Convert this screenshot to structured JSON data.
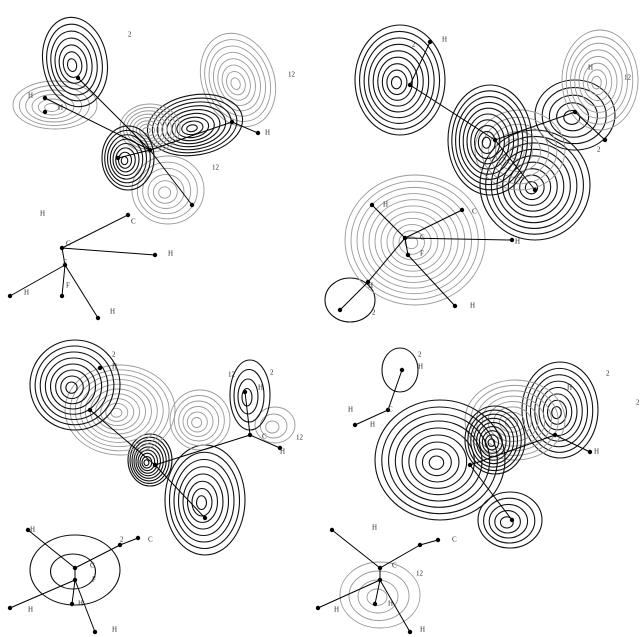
{
  "panels": [
    {
      "labels": [
        "2",
        "H",
        "H",
        "12",
        "H",
        "12",
        "H",
        "C",
        "C",
        "H",
        "F",
        "H",
        "F",
        "H"
      ]
    },
    {
      "labels": [
        "2",
        "H",
        "12",
        "H",
        "2",
        "H",
        "C",
        "C",
        "F",
        "H",
        "H",
        "2",
        "H"
      ]
    },
    {
      "labels": [
        "2",
        "H",
        "12",
        "2",
        "H",
        "C",
        "12",
        "H",
        "C",
        "2",
        "H",
        "C",
        "F",
        "H",
        "H",
        "H"
      ]
    },
    {
      "labels": [
        "2",
        "H",
        "H",
        "C",
        "H",
        "2",
        "H",
        "2",
        "H",
        "C",
        "H",
        "C",
        "12",
        "H",
        "H",
        "H"
      ]
    }
  ]
}
